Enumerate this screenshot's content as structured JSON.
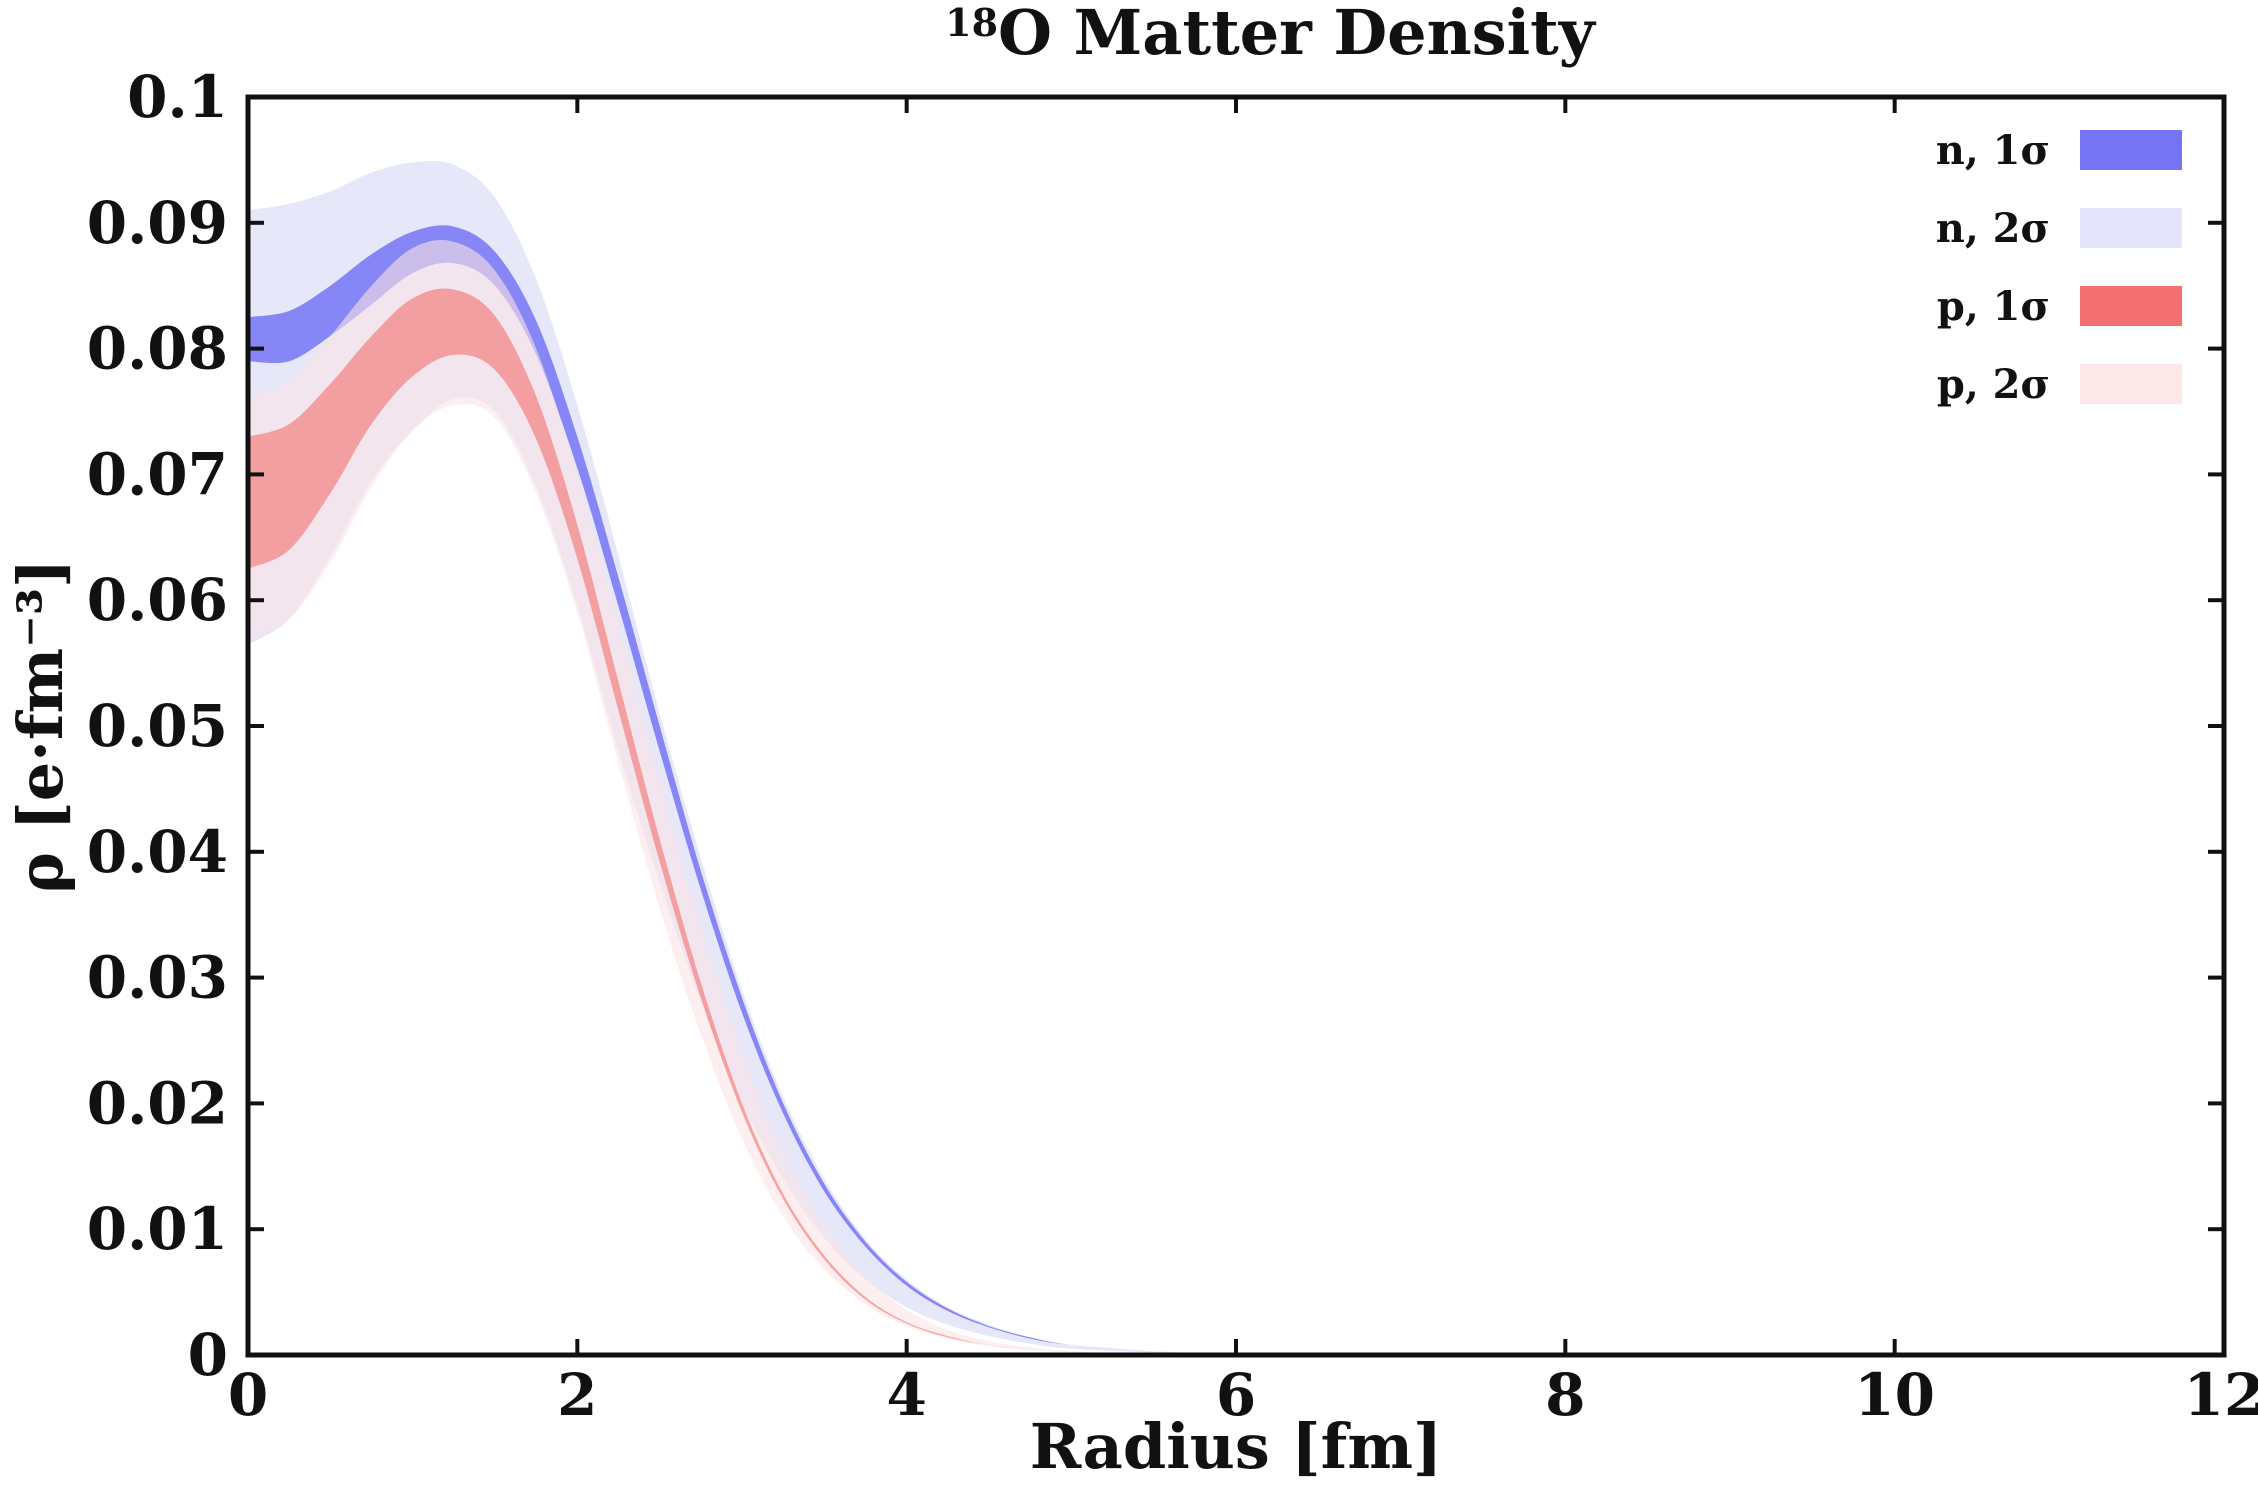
{
  "chart_data": {
    "type": "area",
    "title": "O Matter Density",
    "title_superscript": "18",
    "xlabel": "Radius [fm]",
    "ylabel": "ρ [e·fm⁻³]",
    "xlim": [
      0,
      12
    ],
    "ylim": [
      0,
      0.1
    ],
    "xticks": [
      "0",
      "2",
      "4",
      "6",
      "8",
      "10",
      "12"
    ],
    "yticks": [
      "0",
      "0.01",
      "0.02",
      "0.03",
      "0.04",
      "0.05",
      "0.06",
      "0.07",
      "0.08",
      "0.09",
      "0.1"
    ],
    "grid": false,
    "legend_position": "top-right",
    "x": [
      0,
      0.25,
      0.5,
      0.75,
      1.0,
      1.25,
      1.5,
      1.75,
      2.0,
      2.25,
      2.5,
      2.75,
      3.0,
      3.25,
      3.5,
      3.75,
      4.0,
      4.25,
      4.5,
      4.75,
      5.0,
      5.5,
      6.0
    ],
    "series": [
      {
        "name": "n, 2σ",
        "color": "#e4e4fa",
        "lower": [
          0.0565,
          0.0585,
          0.0635,
          0.0695,
          0.0735,
          0.076,
          0.075,
          0.069,
          0.0595,
          0.048,
          0.0375,
          0.028,
          0.02,
          0.014,
          0.0093,
          0.006,
          0.0038,
          0.0024,
          0.0015,
          0.0009,
          0.0005,
          0.0002,
          0.0
        ],
        "upper": [
          0.091,
          0.0915,
          0.0925,
          0.094,
          0.0948,
          0.0946,
          0.092,
          0.0855,
          0.0755,
          0.0635,
          0.051,
          0.0395,
          0.029,
          0.0205,
          0.014,
          0.0092,
          0.006,
          0.0038,
          0.0024,
          0.0014,
          0.0008,
          0.0003,
          0.0001
        ]
      },
      {
        "name": "n, 1σ",
        "color": "#7474f5",
        "lower": [
          0.079,
          0.079,
          0.081,
          0.0835,
          0.086,
          0.0868,
          0.085,
          0.0795,
          0.0705,
          0.0595,
          0.048,
          0.037,
          0.0272,
          0.0192,
          0.013,
          0.0086,
          0.0055,
          0.0035,
          0.0022,
          0.0013,
          0.0008,
          0.0003,
          0.0
        ],
        "upper": [
          0.0825,
          0.083,
          0.085,
          0.0875,
          0.0893,
          0.0897,
          0.0877,
          0.0822,
          0.073,
          0.0618,
          0.05,
          0.0385,
          0.0284,
          0.02,
          0.0136,
          0.009,
          0.0058,
          0.0037,
          0.0023,
          0.0014,
          0.0008,
          0.0003,
          0.0
        ]
      },
      {
        "name": "p, 2σ",
        "color": "#fce4e4",
        "lower": [
          0.057,
          0.0585,
          0.063,
          0.069,
          0.0735,
          0.0755,
          0.0745,
          0.0685,
          0.059,
          0.047,
          0.0355,
          0.0255,
          0.0172,
          0.011,
          0.0068,
          0.004,
          0.0023,
          0.0013,
          0.0007,
          0.0004,
          0.0002,
          0.0,
          0.0
        ],
        "upper": [
          0.076,
          0.0775,
          0.081,
          0.085,
          0.088,
          0.0885,
          0.0862,
          0.08,
          0.07,
          0.058,
          0.0455,
          0.034,
          0.024,
          0.016,
          0.0102,
          0.0062,
          0.0036,
          0.002,
          0.0011,
          0.0006,
          0.0003,
          0.0001,
          0.0
        ]
      },
      {
        "name": "p, 1σ",
        "color": "#f37070",
        "lower": [
          0.0625,
          0.064,
          0.0685,
          0.074,
          0.0778,
          0.0795,
          0.0783,
          0.0728,
          0.0633,
          0.0512,
          0.0392,
          0.0284,
          0.0193,
          0.0124,
          0.0076,
          0.0044,
          0.0025,
          0.0014,
          0.0008,
          0.0004,
          0.0002,
          0.0,
          0.0
        ],
        "upper": [
          0.073,
          0.074,
          0.0772,
          0.081,
          0.084,
          0.0847,
          0.0826,
          0.0762,
          0.066,
          0.0535,
          0.041,
          0.0296,
          0.02,
          0.0128,
          0.0079,
          0.0046,
          0.0026,
          0.0015,
          0.0008,
          0.0004,
          0.0002,
          0.0,
          0.0
        ]
      }
    ],
    "legend": [
      {
        "label": "n, 1σ",
        "color": "#7474f5"
      },
      {
        "label": "n, 2σ",
        "color": "#e4e4fa"
      },
      {
        "label": "p, 1σ",
        "color": "#f37070"
      },
      {
        "label": "p, 2σ",
        "color": "#fce4e4"
      }
    ]
  }
}
